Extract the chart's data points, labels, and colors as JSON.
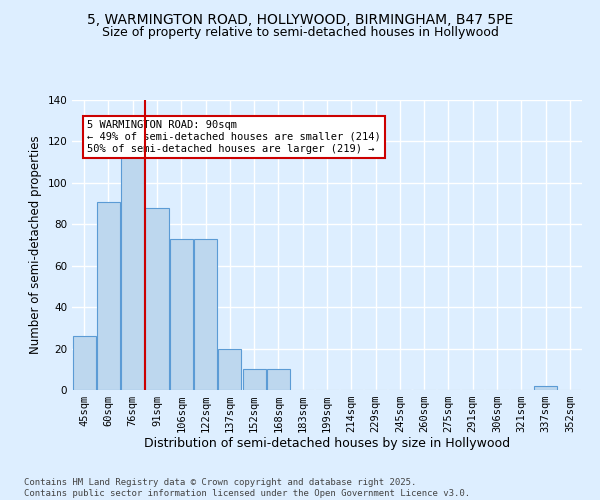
{
  "title_line1": "5, WARMINGTON ROAD, HOLLYWOOD, BIRMINGHAM, B47 5PE",
  "title_line2": "Size of property relative to semi-detached houses in Hollywood",
  "xlabel": "Distribution of semi-detached houses by size in Hollywood",
  "ylabel": "Number of semi-detached properties",
  "footnote1": "Contains HM Land Registry data © Crown copyright and database right 2025.",
  "footnote2": "Contains public sector information licensed under the Open Government Licence v3.0.",
  "categories": [
    "45sqm",
    "60sqm",
    "76sqm",
    "91sqm",
    "106sqm",
    "122sqm",
    "137sqm",
    "152sqm",
    "168sqm",
    "183sqm",
    "199sqm",
    "214sqm",
    "229sqm",
    "245sqm",
    "260sqm",
    "275sqm",
    "291sqm",
    "306sqm",
    "321sqm",
    "337sqm",
    "352sqm"
  ],
  "values": [
    26,
    91,
    118,
    88,
    73,
    73,
    20,
    10,
    10,
    0,
    0,
    0,
    0,
    0,
    0,
    0,
    0,
    0,
    0,
    2,
    0
  ],
  "bar_color": "#bdd7ee",
  "bar_edge_color": "#5b9bd5",
  "vline_pos": 2.5,
  "vline_color": "#cc0000",
  "annotation_text": "5 WARMINGTON ROAD: 90sqm\n← 49% of semi-detached houses are smaller (214)\n50% of semi-detached houses are larger (219) →",
  "annotation_box_color": "#cc0000",
  "annotation_fill": "#ffffff",
  "ylim": [
    0,
    140
  ],
  "yticks": [
    0,
    20,
    40,
    60,
    80,
    100,
    120,
    140
  ],
  "background_color": "#ddeeff",
  "grid_color": "#ffffff",
  "title_fontsize": 10,
  "subtitle_fontsize": 9,
  "tick_fontsize": 7.5,
  "ylabel_fontsize": 8.5,
  "xlabel_fontsize": 9,
  "footnote_fontsize": 6.5
}
